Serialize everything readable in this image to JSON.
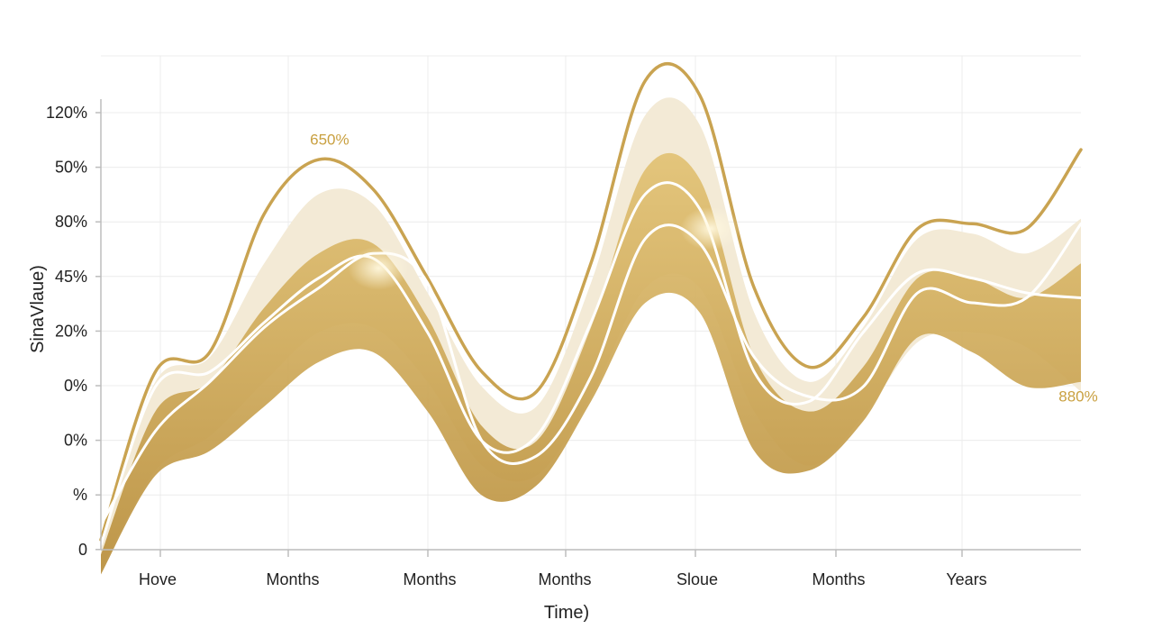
{
  "chart_data": {
    "type": "area",
    "title": "",
    "xlabel": "Time)",
    "ylabel": "SinaVlaue)",
    "x_tick_labels": [
      "Hove",
      "Months",
      "Months",
      "Months",
      "Sloue",
      "Months",
      "Years"
    ],
    "y_tick_labels": [
      "120%",
      "50%",
      "80%",
      "45%",
      "20%",
      "0%",
      "0%",
      "%",
      "0"
    ],
    "x": [
      0,
      1,
      2,
      3,
      4,
      5,
      6,
      7,
      8,
      9,
      10,
      11,
      12,
      13,
      14,
      15,
      16,
      17,
      18
    ],
    "series": [
      {
        "role": "outer-line",
        "values": [
          0.2,
          3.6,
          4.0,
          6.8,
          7.9,
          7.3,
          5.5,
          3.6,
          3.2,
          5.8,
          9.5,
          9.2,
          5.3,
          3.7,
          4.7,
          6.5,
          6.6,
          6.5,
          8.1
        ]
      },
      {
        "role": "white-line-a",
        "values": [
          0.1,
          3.3,
          3.6,
          4.6,
          5.5,
          5.9,
          4.4,
          2.2,
          2.3,
          4.6,
          7.2,
          6.9,
          3.6,
          3.0,
          4.4,
          5.6,
          5.5,
          5.2,
          5.1
        ]
      },
      {
        "role": "white-line-b",
        "values": [
          0.5,
          2.4,
          3.4,
          4.5,
          5.3,
          6.0,
          5.4,
          2.2,
          1.9,
          3.5,
          6.3,
          6.2,
          3.9,
          3.1,
          3.3,
          5.2,
          5.0,
          5.1,
          6.6
        ]
      }
    ],
    "bands": [
      {
        "role": "outer-band",
        "color": "#f3ead6",
        "upper": [
          0.1,
          3.4,
          3.9,
          5.8,
          7.2,
          7.0,
          5.2,
          3.3,
          2.9,
          5.4,
          8.8,
          8.6,
          4.8,
          3.4,
          4.5,
          6.3,
          6.4,
          6.0,
          6.7
        ],
        "lower": [
          -0.4,
          1.6,
          2.3,
          3.4,
          4.4,
          4.5,
          3.4,
          1.7,
          1.5,
          3.1,
          5.3,
          5.3,
          2.8,
          1.7,
          2.7,
          4.2,
          4.4,
          4.1,
          3.2
        ]
      },
      {
        "role": "inner-band",
        "color": "#d8b461",
        "upper": [
          -0.1,
          2.8,
          3.4,
          4.9,
          6.0,
          6.2,
          4.7,
          2.5,
          2.2,
          4.5,
          7.7,
          7.5,
          3.9,
          2.8,
          3.7,
          5.5,
          5.5,
          5.1,
          5.8
        ],
        "lower": [
          -0.5,
          1.5,
          2.0,
          2.9,
          3.8,
          4.0,
          2.8,
          1.1,
          1.3,
          3.0,
          5.0,
          4.8,
          2.0,
          1.6,
          2.6,
          4.3,
          4.0,
          3.3,
          3.4
        ]
      }
    ],
    "annotations": [
      {
        "text": "650%",
        "x": 4.2,
        "y": 8.2,
        "color": "#c9a040"
      },
      {
        "text": "880%",
        "x": 17.95,
        "y": 3.0,
        "color": "#c9a040"
      }
    ],
    "ylim": [
      0,
      10
    ],
    "grid": true,
    "legend": "none"
  },
  "colors": {
    "accent_gold": "#c9a351",
    "deep_gold": "#b8903a",
    "white_line": "#ffffff",
    "grid": "#ececec",
    "axis": "#bdbdbd",
    "text": "#222222"
  }
}
